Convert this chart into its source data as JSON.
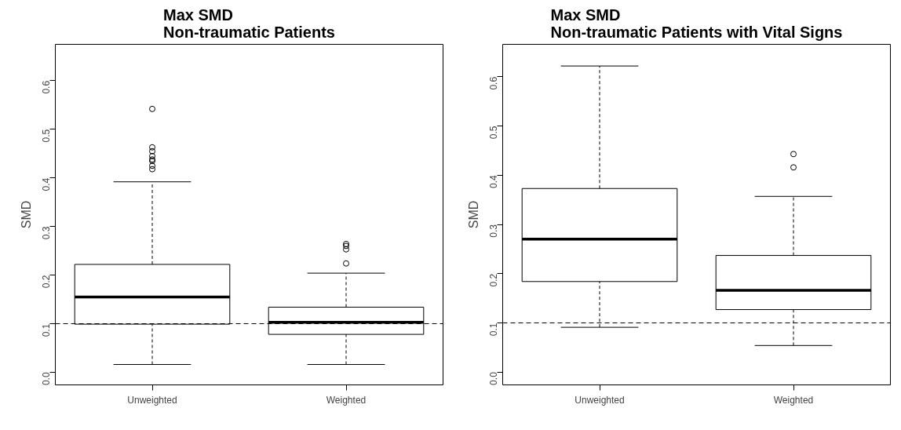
{
  "chart_data": [
    {
      "type": "box",
      "title": "Max SMD\nNon-traumatic Patients",
      "ylabel": "SMD",
      "categories": [
        "Unweighted",
        "Weighted"
      ],
      "boxes": [
        {
          "low": 0.016,
          "q1": 0.099,
          "median": 0.155,
          "q3": 0.222,
          "high": 0.392,
          "outliers": [
            0.542,
            0.463,
            0.455,
            0.445,
            0.438,
            0.435,
            0.425,
            0.418
          ]
        },
        {
          "low": 0.016,
          "q1": 0.078,
          "median": 0.103,
          "q3": 0.134,
          "high": 0.204,
          "outliers": [
            0.224,
            0.253,
            0.26,
            0.264
          ]
        }
      ],
      "ylim": [
        -0.026,
        0.675
      ],
      "yticks": [
        {
          "value": 0,
          "label": "0.0"
        },
        0.1,
        0.2,
        0.3,
        0.4,
        0.5,
        0.6
      ],
      "grid": false,
      "ref_lines": [
        {
          "axis": "y",
          "value": 0.1,
          "line_style": "dashed",
          "color": "#000000"
        }
      ]
    },
    {
      "type": "box",
      "title": "Max SMD\nNon-traumatic Patients with Vital Signs",
      "ylabel": "SMD",
      "categories": [
        "Unweighted",
        "Weighted"
      ],
      "boxes": [
        {
          "low": 0.091,
          "q1": 0.184,
          "median": 0.27,
          "q3": 0.373,
          "high": 0.622
        },
        {
          "low": 0.054,
          "q1": 0.127,
          "median": 0.166,
          "q3": 0.237,
          "high": 0.357,
          "outliers": [
            0.416,
            0.443
          ]
        }
      ],
      "ylim": [
        -0.026,
        0.666
      ],
      "yticks": [
        {
          "value": 0,
          "label": "0.0"
        },
        0.1,
        0.2,
        0.3,
        0.4,
        0.5,
        0.6
      ],
      "grid": false,
      "ref_lines": [
        {
          "axis": "y",
          "value": 0.1,
          "line_style": "dashed",
          "color": "#000000"
        }
      ]
    }
  ]
}
